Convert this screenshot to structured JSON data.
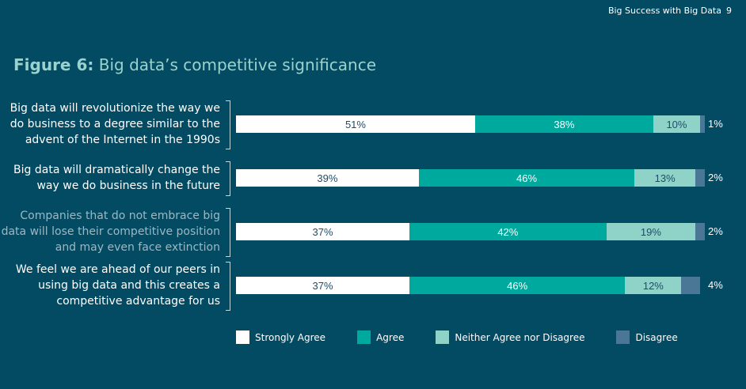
{
  "header": {
    "text": "Big Success with Big Data",
    "page": "9"
  },
  "title": {
    "prefix": "Figure 6:",
    "text": "Big data’s competitive significance"
  },
  "colors": {
    "background": "#034A63",
    "strongly_agree": "#FFFFFF",
    "agree": "#00A99D",
    "neither": "#8FD3C8",
    "disagree": "#4A7795",
    "label_primary": "#FFFFFF",
    "label_muted": "#9BB9C5"
  },
  "chart_data": {
    "type": "bar",
    "orientation": "horizontal",
    "stacked": true,
    "categories": [
      "Big data will revolutionize the way we do business to a degree similar to the advent of the Internet in the 1990s",
      "Big data will dramatically change the way we do business in the future",
      "Companies that do not embrace big data will lose their competitive position and may even face extinction",
      "We feel we are ahead of our peers in using big data and this creates a competitive advantage for us"
    ],
    "category_lines": [
      [
        "Big data will revolutionize the way we",
        "do business to a degree similar to the",
        "advent of the Internet in the 1990s"
      ],
      [
        "Big data will dramatically change the",
        "way we do business in the future"
      ],
      [
        "Companies that do not embrace big",
        "data will lose their competitive position",
        "and may even face extinction"
      ],
      [
        "We feel we are ahead of our peers in",
        "using big data and this creates a",
        "competitive advantage for us"
      ]
    ],
    "category_muted": [
      false,
      false,
      true,
      false
    ],
    "series": [
      {
        "name": "Strongly Agree",
        "values": [
          51,
          39,
          37,
          37
        ],
        "labels": [
          "51%",
          "39%",
          "37%",
          "37%"
        ]
      },
      {
        "name": "Agree",
        "values": [
          38,
          46,
          42,
          46
        ],
        "labels": [
          "38%",
          "46%",
          "42%",
          "46%"
        ]
      },
      {
        "name": "Neither Agree nor Disagree",
        "values": [
          10,
          13,
          19,
          12
        ],
        "labels": [
          "10%",
          "13%",
          "19%",
          "12%"
        ]
      },
      {
        "name": "Disagree",
        "values": [
          1,
          2,
          2,
          4
        ],
        "labels": [
          "1%",
          "2%",
          "2%",
          "4%"
        ]
      }
    ],
    "xlim": [
      0,
      100
    ],
    "legend": "bottom",
    "grid": false
  }
}
